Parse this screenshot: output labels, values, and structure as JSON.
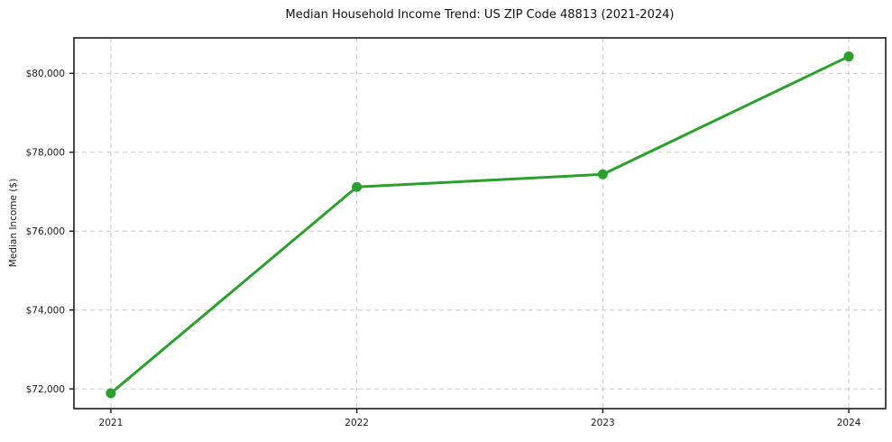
{
  "chart_data": {
    "type": "line",
    "title": "Median Household Income Trend: US ZIP Code 48813 (2021-2024)",
    "xlabel": "",
    "ylabel": "Median Income ($)",
    "x": [
      2021,
      2022,
      2023,
      2024
    ],
    "x_tick_labels": [
      "2021",
      "2022",
      "2023",
      "2024"
    ],
    "series": [
      {
        "name": "Median Household Income",
        "values": [
          71890,
          77120,
          77440,
          80430
        ],
        "color": "#2ca02c",
        "marker": "circle"
      }
    ],
    "yticks": [
      72000,
      74000,
      76000,
      78000,
      80000
    ],
    "ytick_labels": [
      "$72,000",
      "$74,000",
      "$76,000",
      "$78,000",
      "$80,000"
    ],
    "ylim": [
      71500,
      80900
    ],
    "xlim": [
      2020.85,
      2024.15
    ],
    "grid": "both",
    "grid_style": "dashed",
    "legend_position": "none",
    "colors": {
      "line": "#2ca02c",
      "grid": "#c9c9c9",
      "spine": "#1a1a1a",
      "tick": "#1a1a1a",
      "text": "#1a1a1a",
      "background": "#ffffff"
    }
  }
}
